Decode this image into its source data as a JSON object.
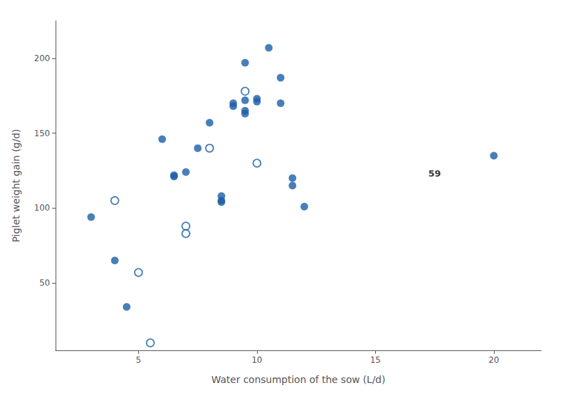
{
  "chart_data": {
    "type": "scatter",
    "xlabel": "Water consumption of the sow (L/d)",
    "ylabel": "Piglet weight gain (g/d)",
    "series": [
      {
        "color": "#1a5fa8",
        "marker": "filled_circle",
        "x": [
          3.0,
          4.0,
          4.5,
          6.0,
          6.5,
          6.5,
          7.0,
          7.5,
          8.0,
          8.5,
          8.5,
          8.5,
          9.0,
          9.0,
          9.5,
          9.5,
          9.5,
          9.5,
          10.0,
          10.0,
          10.5,
          11.0,
          11.0,
          11.5,
          11.5,
          12.0,
          20.0
        ],
        "values": [
          94,
          65,
          34,
          146,
          122,
          121,
          124,
          140,
          157,
          105,
          104,
          108,
          170,
          168,
          172,
          165,
          163,
          197,
          173,
          171,
          207,
          187,
          170,
          115,
          120,
          101,
          135
        ]
      },
      {
        "color": "#1a5fa8",
        "marker": "open_circle",
        "x": [
          4.0,
          5.0,
          5.5,
          7.0,
          7.0,
          8.0,
          9.5,
          10.0
        ],
        "values": [
          105,
          57,
          10,
          88,
          83,
          140,
          178,
          130
        ]
      }
    ],
    "annotations": [
      {
        "text": "59",
        "x": 17.5,
        "y": 123
      }
    ],
    "xlim": [
      1.5,
      22
    ],
    "ylim": [
      5,
      225
    ],
    "xticks": [
      5,
      10,
      15,
      20
    ],
    "yticks": [
      50,
      100,
      150,
      200
    ],
    "grid": false
  }
}
